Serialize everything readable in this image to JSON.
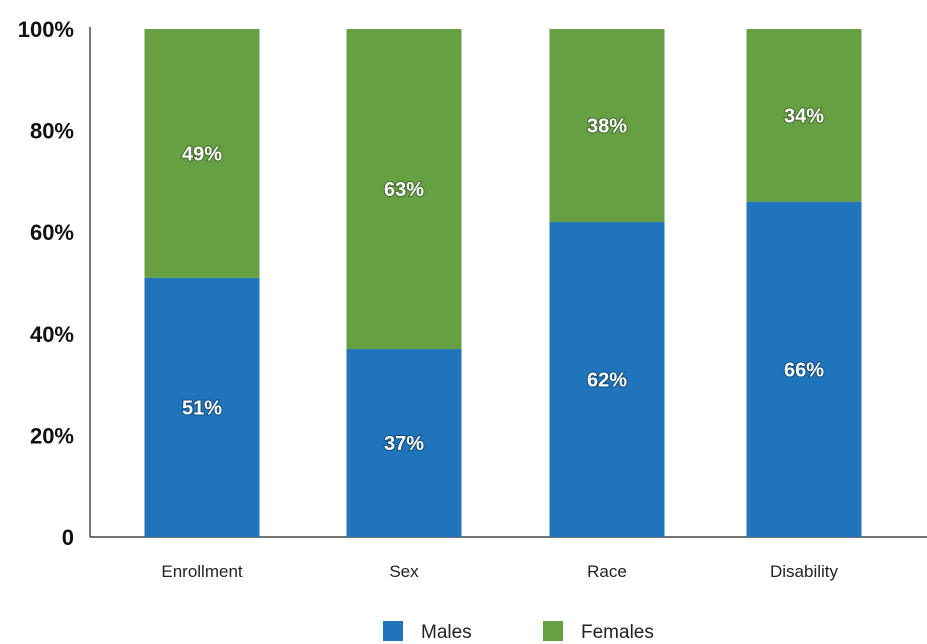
{
  "chart_data": {
    "type": "bar",
    "stacked": true,
    "categories": [
      "Enrollment",
      "Sex",
      "Race",
      "Disability"
    ],
    "series": [
      {
        "name": "Males",
        "values": [
          51,
          37,
          62,
          66
        ],
        "labels": [
          "51%",
          "37%",
          "62%",
          "66%"
        ],
        "color": "#1f74bc"
      },
      {
        "name": "Females",
        "values": [
          49,
          63,
          38,
          34
        ],
        "labels": [
          "49%",
          "63%",
          "38%",
          "34%"
        ],
        "color": "#67a043"
      }
    ],
    "yticks": [
      {
        "value": 0,
        "label": "0"
      },
      {
        "value": 20,
        "label": "20%"
      },
      {
        "value": 40,
        "label": "40%"
      },
      {
        "value": 60,
        "label": "60%"
      },
      {
        "value": 80,
        "label": "80%"
      },
      {
        "value": 100,
        "label": "100%"
      }
    ],
    "ylim": [
      0,
      100
    ],
    "grid": false,
    "legend_position": "bottom"
  }
}
